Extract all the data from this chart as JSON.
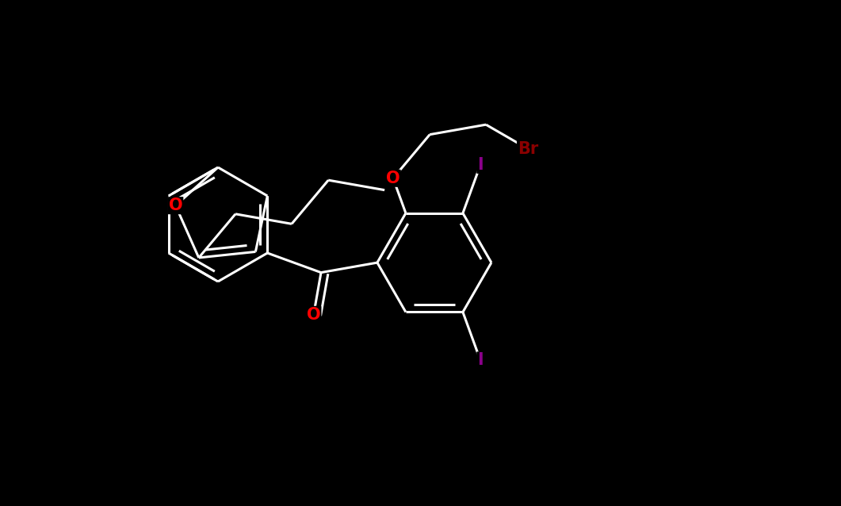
{
  "bg_color": "#000000",
  "bond_color": "#ffffff",
  "O_color": "#ff0000",
  "I_color": "#8b008b",
  "Br_color": "#8b0000",
  "figsize": [
    10.61,
    6.38
  ],
  "dpi": 100,
  "lw": 2.2,
  "xlim": [
    0,
    10.61
  ],
  "ylim": [
    0,
    6.38
  ]
}
